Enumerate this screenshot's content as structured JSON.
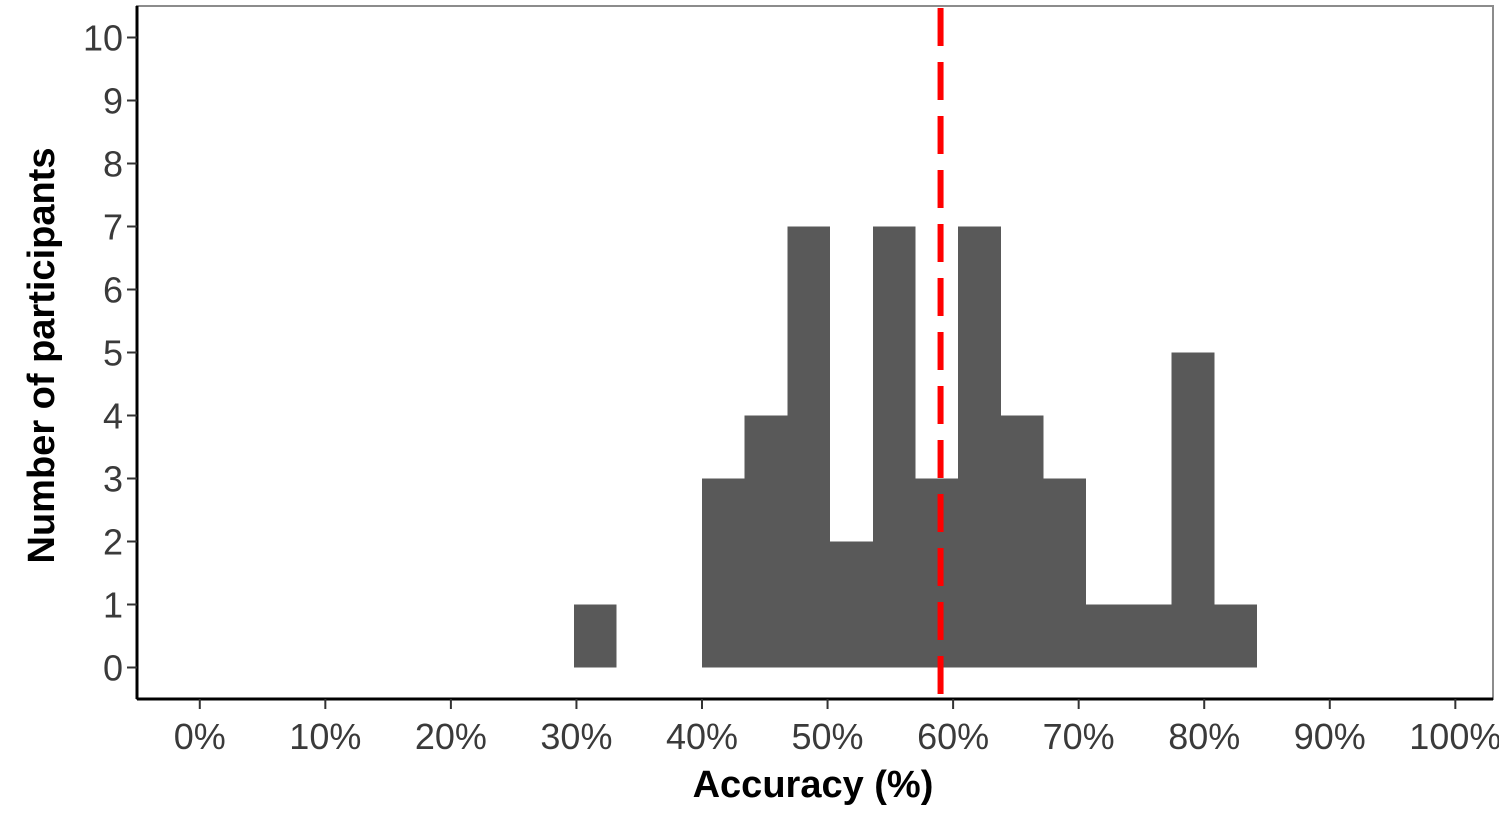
{
  "chart_data": {
    "type": "bar",
    "title": "",
    "xlabel": "Accuracy (%)",
    "ylabel": "Number of participants",
    "xlim": [
      -5,
      103
    ],
    "ylim": [
      -0.5,
      10.5
    ],
    "x_ticks": [
      0,
      10,
      20,
      30,
      40,
      50,
      60,
      70,
      80,
      90,
      100
    ],
    "x_tick_labels": [
      "0%",
      "10%",
      "20%",
      "30%",
      "40%",
      "50%",
      "60%",
      "70%",
      "80%",
      "90%",
      "100%"
    ],
    "y_ticks": [
      0,
      1,
      2,
      3,
      4,
      5,
      6,
      7,
      8,
      9,
      10
    ],
    "y_tick_labels": [
      "0",
      "1",
      "2",
      "3",
      "4",
      "5",
      "6",
      "7",
      "8",
      "9",
      "10"
    ],
    "bin_width": 3.4,
    "bins": [
      {
        "x0": 29.8,
        "count": 1
      },
      {
        "x0": 40.0,
        "count": 3
      },
      {
        "x0": 43.4,
        "count": 4
      },
      {
        "x0": 46.8,
        "count": 7
      },
      {
        "x0": 50.2,
        "count": 2
      },
      {
        "x0": 53.6,
        "count": 7
      },
      {
        "x0": 57.0,
        "count": 3
      },
      {
        "x0": 60.4,
        "count": 7
      },
      {
        "x0": 63.8,
        "count": 4
      },
      {
        "x0": 67.2,
        "count": 3
      },
      {
        "x0": 70.6,
        "count": 1
      },
      {
        "x0": 74.0,
        "count": 1
      },
      {
        "x0": 77.4,
        "count": 5
      },
      {
        "x0": 80.8,
        "count": 1
      }
    ],
    "reference_line": {
      "x": 59.0,
      "color": "#ff0000",
      "style": "dashed"
    },
    "bar_color": "#595959",
    "grid": false,
    "legend": "none"
  }
}
